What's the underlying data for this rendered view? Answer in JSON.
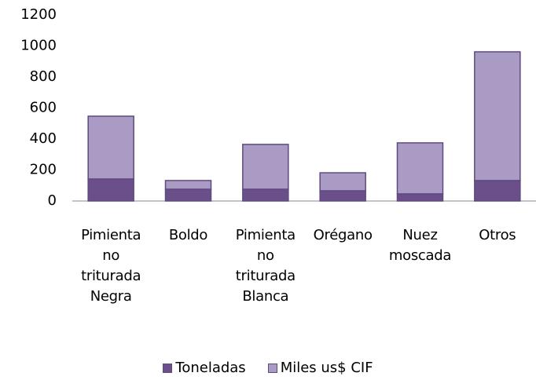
{
  "chart_data": {
    "type": "stacked_bar",
    "categories": [
      "Pimienta no triturada Negra",
      "Boldo",
      "Pimienta no triturada Blanca",
      "Orégano",
      "Nuez moscada",
      "Otros"
    ],
    "series": [
      {
        "name": "Toneladas",
        "color": "#6b4f8a",
        "values": [
          142,
          76,
          76,
          66,
          46,
          132
        ]
      },
      {
        "name": "Miles us$ CIF",
        "color": "#a99bc4",
        "values": [
          405,
          56,
          289,
          116,
          329,
          830
        ]
      }
    ],
    "ylim": [
      0,
      1200
    ],
    "yticks": [
      0,
      200,
      400,
      600,
      800,
      1000,
      1200
    ],
    "grid": false,
    "legend": "bottom"
  }
}
